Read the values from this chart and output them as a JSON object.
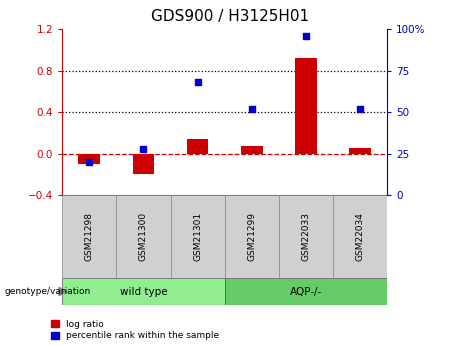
{
  "title": "GDS900 / H3125H01",
  "categories": [
    "GSM21298",
    "GSM21300",
    "GSM21301",
    "GSM21299",
    "GSM22033",
    "GSM22034"
  ],
  "log_ratio": [
    -0.1,
    -0.2,
    0.14,
    0.07,
    0.92,
    0.05
  ],
  "percentile_rank": [
    20,
    28,
    68,
    52,
    96,
    52
  ],
  "bar_color": "#CC0000",
  "dot_color": "#0000CC",
  "ylim_left": [
    -0.4,
    1.2
  ],
  "ylim_right": [
    0,
    100
  ],
  "yticks_left": [
    -0.4,
    0.0,
    0.4,
    0.8,
    1.2
  ],
  "yticks_right": [
    0,
    25,
    50,
    75,
    100
  ],
  "ytick_labels_right": [
    "0",
    "25",
    "50",
    "75",
    "100%"
  ],
  "hline_y": [
    0.4,
    0.8
  ],
  "group1_label": "wild type",
  "group2_label": "AQP-/-",
  "group1_color": "#90EE90",
  "group2_color": "#66CC66",
  "genotype_label": "genotype/variation",
  "legend_log_ratio": "log ratio",
  "legend_percentile": "percentile rank within the sample",
  "title_fontsize": 11,
  "tick_fontsize": 7.5,
  "label_fontsize": 7
}
